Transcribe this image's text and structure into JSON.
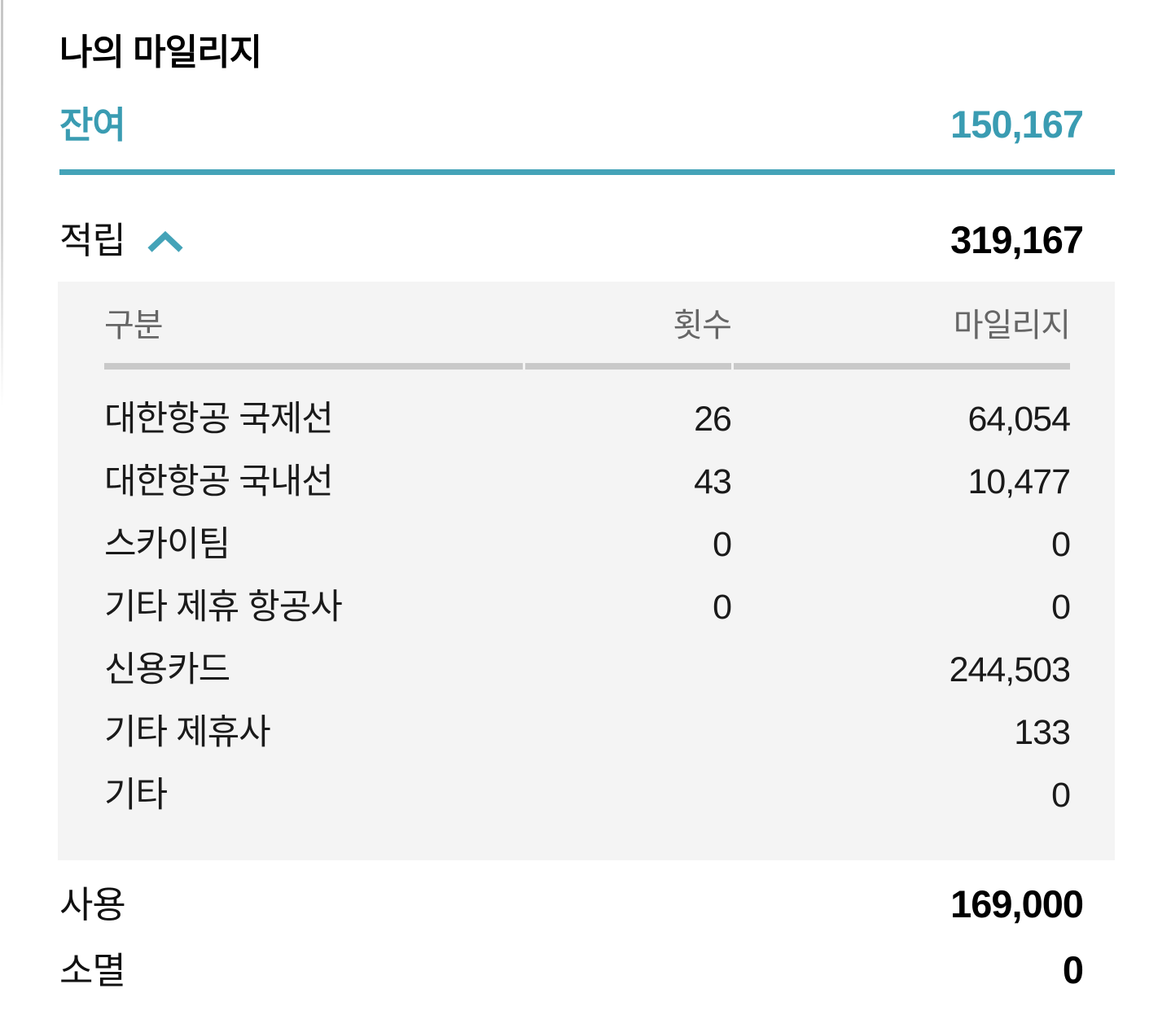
{
  "page": {
    "title": "나의 마일리지"
  },
  "colors": {
    "accent_teal": "#3a9cb2",
    "divider_teal": "#44a3b8",
    "panel_background": "#f4f4f4",
    "header_text": "#666666",
    "header_underline": "#c9c9c9"
  },
  "summary": {
    "remaining": {
      "label": "잔여",
      "value": "150,167"
    },
    "earned": {
      "label": "적립",
      "value": "319,167"
    },
    "used": {
      "label": "사용",
      "value": "169,000"
    },
    "expired": {
      "label": "소멸",
      "value": "0"
    }
  },
  "icons": {
    "earned_toggle": "chevron-up-icon"
  },
  "earned_table": {
    "columns": [
      "구분",
      "횟수",
      "마일리지"
    ],
    "rows": [
      {
        "category": "대한항공 국제선",
        "count": "26",
        "mileage": "64,054"
      },
      {
        "category": "대한항공 국내선",
        "count": "43",
        "mileage": "10,477"
      },
      {
        "category": "스카이팀",
        "count": "0",
        "mileage": "0"
      },
      {
        "category": "기타 제휴 항공사",
        "count": "0",
        "mileage": "0"
      },
      {
        "category": "신용카드",
        "count": "",
        "mileage": "244,503"
      },
      {
        "category": "기타 제휴사",
        "count": "",
        "mileage": "133"
      },
      {
        "category": "기타",
        "count": "",
        "mileage": "0"
      }
    ]
  }
}
